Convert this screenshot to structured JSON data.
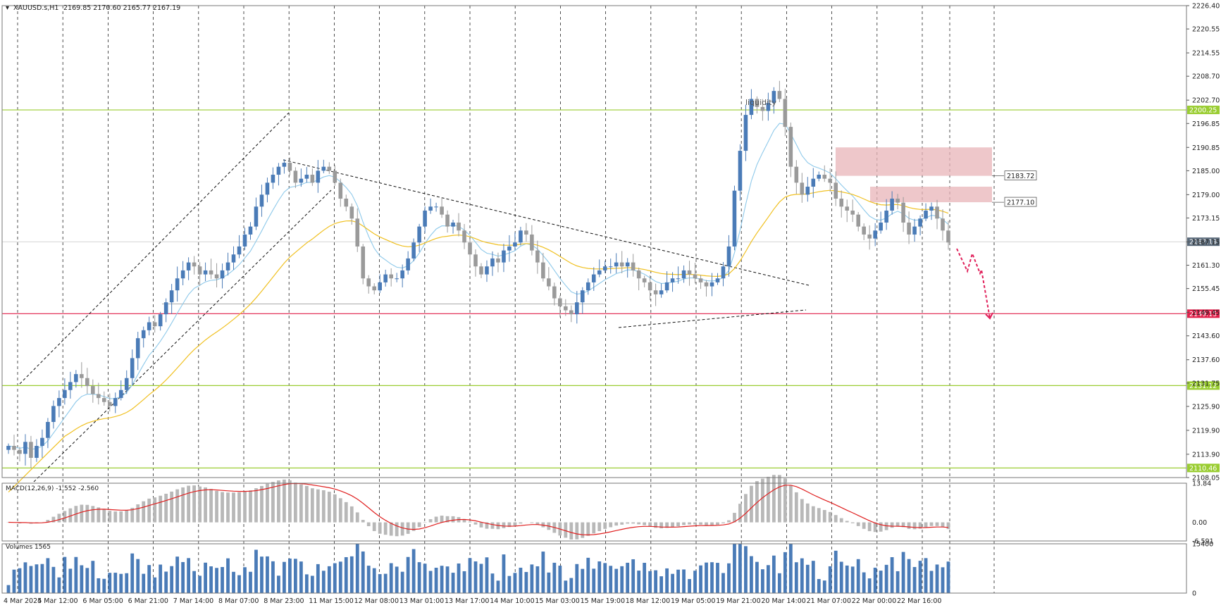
{
  "header": {
    "symbol_label": "XAUUSD.s,H1",
    "ohlc_label": "2169.85 2170.60 2165.77 2167.19"
  },
  "colors": {
    "bull": "#4a7bb7",
    "bear": "#9a9a9a",
    "grid": "#222222",
    "ema_fast": "#8ec9ea",
    "ema_slow": "#f0c020",
    "level_green": "#9acd32",
    "level_red": "#e0204a",
    "zone": "#e8b4b8",
    "arrow": "#e0205a",
    "macd_hist": "#b8b8b8",
    "macd_signal": "#e02020",
    "volume": "#4a7bb7"
  },
  "chart_data": [
    {
      "type": "line",
      "name": "price",
      "x_ticks": [
        "4 Mar 2024",
        "5 Mar 12:00",
        "6 Mar 05:00",
        "6 Mar 21:00",
        "7 Mar 14:00",
        "8 Mar 07:00",
        "8 Mar 23:00",
        "11 Mar 15:00",
        "12 Mar 08:00",
        "13 Mar 01:00",
        "13 Mar 17:00",
        "14 Mar 10:00",
        "15 Mar 03:00",
        "15 Mar 19:00",
        "18 Mar 12:00",
        "19 Mar 05:00",
        "19 Mar 21:00",
        "20 Mar 14:00",
        "21 Mar 07:00",
        "22 Mar 00:00",
        "22 Mar 16:00"
      ],
      "y_ticks": [
        "2226.40",
        "2220.55",
        "2214.55",
        "2208.70",
        "2202.70",
        "2196.85",
        "2190.85",
        "2185.00",
        "2179.00",
        "2173.15",
        "2167.15",
        "2161.30",
        "2155.45",
        "2149.45",
        "2143.60",
        "2137.60",
        "2131.75",
        "2125.90",
        "2119.90",
        "2113.90",
        "2108.05"
      ],
      "ylim": [
        2108.05,
        2226.4
      ],
      "close_series": [
        2116,
        2115,
        2114,
        2117,
        2113,
        2116,
        2118,
        2122,
        2126,
        2128,
        2130,
        2132,
        2134,
        2133,
        2131,
        2129,
        2128,
        2127,
        2126,
        2128,
        2130,
        2133,
        2138,
        2143,
        2145,
        2147,
        2146,
        2149,
        2152,
        2155,
        2158,
        2160,
        2162,
        2161,
        2159,
        2160,
        2159,
        2158,
        2160,
        2162,
        2164,
        2166,
        2169,
        2171,
        2176,
        2179,
        2182,
        2184,
        2186,
        2187,
        2185,
        2182,
        2183,
        2184,
        2182,
        2185,
        2186,
        2185,
        2182,
        2178,
        2176,
        2173,
        2166,
        2158,
        2156,
        2155,
        2157,
        2159,
        2158,
        2158,
        2160,
        2163,
        2167,
        2171,
        2175,
        2176,
        2176,
        2174,
        2171,
        2172,
        2170,
        2167,
        2164,
        2161,
        2159,
        2161,
        2163,
        2162,
        2165,
        2166,
        2167,
        2170,
        2169,
        2165,
        2162,
        2158,
        2156,
        2153,
        2151,
        2150,
        2149,
        2152,
        2155,
        2157,
        2159,
        2160,
        2161,
        2161,
        2162,
        2161,
        2162,
        2160,
        2158,
        2157,
        2155,
        2154,
        2155,
        2157,
        2158,
        2158,
        2160,
        2159,
        2158,
        2157,
        2156,
        2157,
        2158,
        2161,
        2166,
        2180,
        2190,
        2199,
        2203,
        2201,
        2200,
        2202,
        2205,
        2203,
        2196,
        2186,
        2182,
        2179,
        2181,
        2183,
        2184,
        2183,
        2182,
        2178,
        2176,
        2175,
        2174,
        2171,
        2169,
        2168,
        2170,
        2172,
        2175,
        2178,
        2177,
        2172,
        2169,
        2171,
        2173,
        2175,
        2176,
        2173,
        2170,
        2167
      ],
      "levels": [
        {
          "value": 2200.25,
          "label": "2200.25",
          "kind": "green"
        },
        {
          "value": 2149.15,
          "label": "2149.15",
          "kind": "red"
        },
        {
          "value": 2131.12,
          "label": "2131.12",
          "kind": "green"
        },
        {
          "value": 2110.46,
          "label": "2110.46",
          "kind": "green"
        }
      ],
      "current_price": {
        "value": 2167.19,
        "label": "2167.19"
      },
      "zones": [
        {
          "top": 2190.85,
          "bottom": 2183.72,
          "label": "2183.72"
        },
        {
          "top": 2181.0,
          "bottom": 2177.1,
          "label": "2177.10"
        }
      ],
      "annotations": [
        {
          "text": "liquidity"
        }
      ]
    },
    {
      "type": "bar",
      "name": "MACD(12,26,9) -1.552 -2.560",
      "title": "MACD(12,26,9) -1.552 -2.560",
      "y_ticks": [
        "13.84",
        "0.00",
        "-6.591"
      ],
      "ylim": [
        -6.591,
        13.84
      ]
    },
    {
      "type": "bar",
      "name": "Volumes 1565",
      "title": "Volumes 1565",
      "y_ticks": [
        "15400",
        "0"
      ],
      "ylim": [
        0,
        15400
      ]
    }
  ]
}
